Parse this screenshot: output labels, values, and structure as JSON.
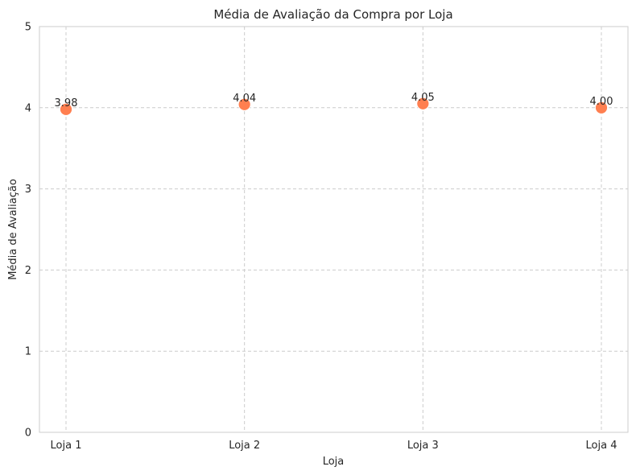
{
  "chart_data": {
    "type": "scatter",
    "title": "Média de Avaliação da Compra por Loja",
    "xlabel": "Loja",
    "ylabel": "Média de Avaliação",
    "categories": [
      "Loja 1",
      "Loja 2",
      "Loja 3",
      "Loja 4"
    ],
    "values": [
      3.98,
      4.04,
      4.05,
      4.0
    ],
    "value_labels": [
      "3.98",
      "4.04",
      "4.05",
      "4.00"
    ],
    "ylim": [
      0,
      5
    ],
    "yticks": [
      "0",
      "1",
      "2",
      "3",
      "4",
      "5"
    ],
    "grid": true,
    "grid_style": "dashed",
    "marker_color": "#ff7f50"
  }
}
